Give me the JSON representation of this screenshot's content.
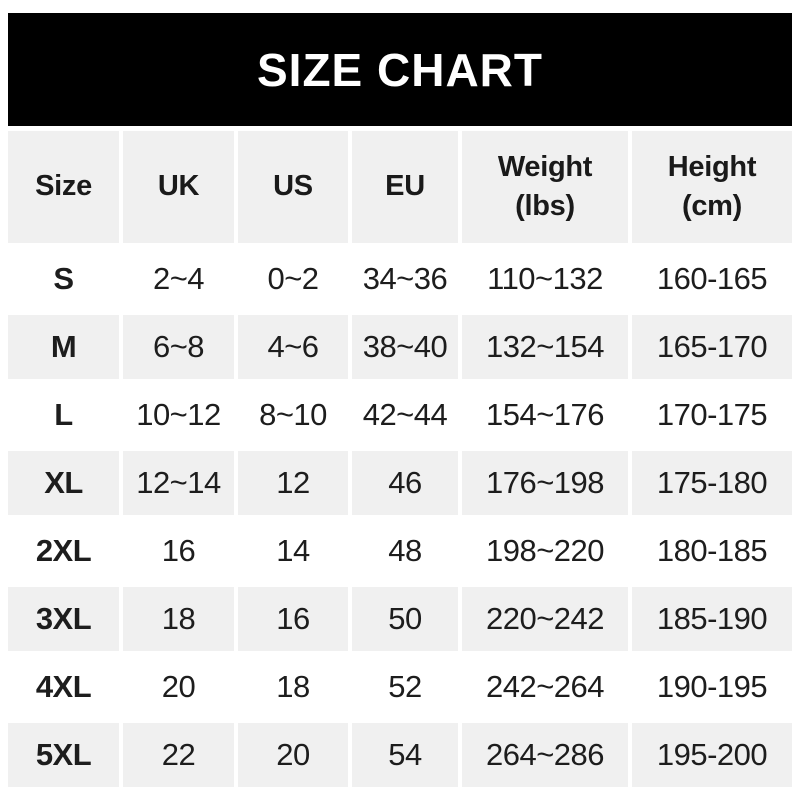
{
  "chart_data": {
    "type": "table",
    "title": "SIZE CHART",
    "columns": [
      "Size",
      "UK",
      "US",
      "EU",
      "Weight\n(lbs)",
      "Height\n(cm)"
    ],
    "rows": [
      [
        "S",
        "2~4",
        "0~2",
        "34~36",
        "110~132",
        "160-165"
      ],
      [
        "M",
        "6~8",
        "4~6",
        "38~40",
        "132~154",
        "165-170"
      ],
      [
        "L",
        "10~12",
        "8~10",
        "42~44",
        "154~176",
        "170-175"
      ],
      [
        "XL",
        "12~14",
        "12",
        "46",
        "176~198",
        "175-180"
      ],
      [
        "2XL",
        "16",
        "14",
        "48",
        "198~220",
        "180-185"
      ],
      [
        "3XL",
        "18",
        "16",
        "50",
        "220~242",
        "185-190"
      ],
      [
        "4XL",
        "20",
        "18",
        "52",
        "242~264",
        "190-195"
      ],
      [
        "5XL",
        "22",
        "20",
        "54",
        "264~286",
        "195-200"
      ]
    ],
    "layout": {
      "alternating_rows": true,
      "grid": "off"
    },
    "colors": {
      "banner_bg": "#000000",
      "banner_text": "#ffffff",
      "alt_row_bg": "#f0f0f0",
      "text": "#1d1d1d"
    }
  }
}
